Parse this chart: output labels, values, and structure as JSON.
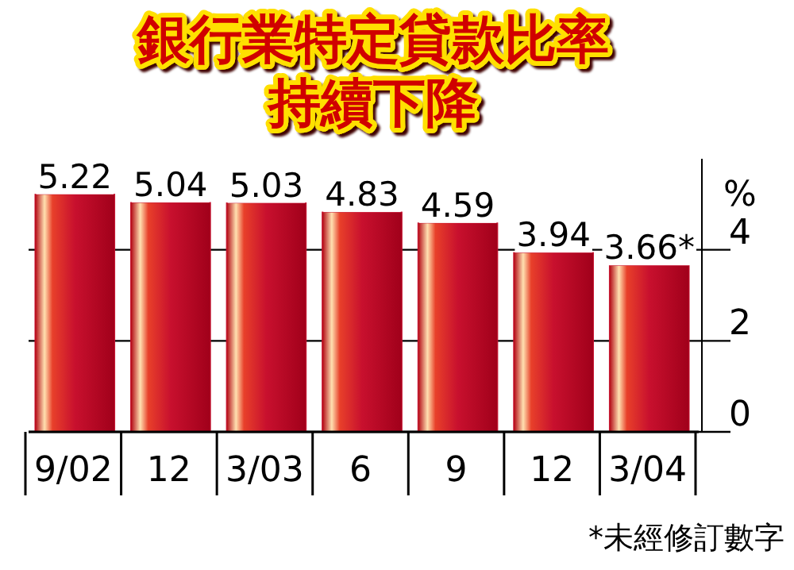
{
  "chart_data": {
    "type": "bar",
    "title": "銀行業特定貸款比率",
    "subtitle": "持續下降",
    "ylabel": "%",
    "categories": [
      "9/02",
      "12",
      "3/03",
      "6",
      "9",
      "12",
      "3/04"
    ],
    "values": [
      5.22,
      5.04,
      5.03,
      4.83,
      4.59,
      3.94,
      3.66
    ],
    "value_labels": [
      "5.22",
      "5.04",
      "5.03",
      "4.83",
      "4.59",
      "3.94",
      "3.66*"
    ],
    "color": "#c8102e",
    "ylim": [
      0,
      6
    ],
    "yticks": [
      0,
      2,
      4
    ],
    "grid": "y",
    "annotations": [
      "*未經修訂數字"
    ]
  }
}
